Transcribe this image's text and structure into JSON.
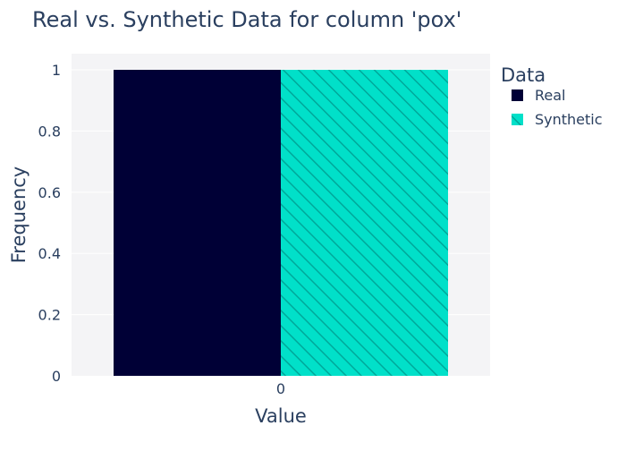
{
  "chart_data": {
    "type": "bar",
    "title": "Real vs. Synthetic Data for column 'pox'",
    "xlabel": "Value",
    "ylabel": "Frequency",
    "categories": [
      "0"
    ],
    "ylim": [
      0,
      1
    ],
    "yticks": [
      0,
      0.2,
      0.4,
      0.6,
      0.8,
      1
    ],
    "ytick_labels": [
      "0",
      "0.2",
      "0.4",
      "0.6",
      "0.8",
      "1"
    ],
    "grid": true,
    "legend": {
      "title": "Data",
      "placement": "right"
    },
    "series": [
      {
        "name": "Real",
        "values": [
          1
        ],
        "color": "#000036",
        "pattern": "solid"
      },
      {
        "name": "Synthetic",
        "values": [
          1
        ],
        "color": "#01E0C9",
        "pattern": "diagonal-hatch",
        "hatch_color": "#00A89A"
      }
    ]
  },
  "colors": {
    "plot_background": "#F4F4F6",
    "grid": "#FFFFFF",
    "text": "#2A3F5F"
  }
}
